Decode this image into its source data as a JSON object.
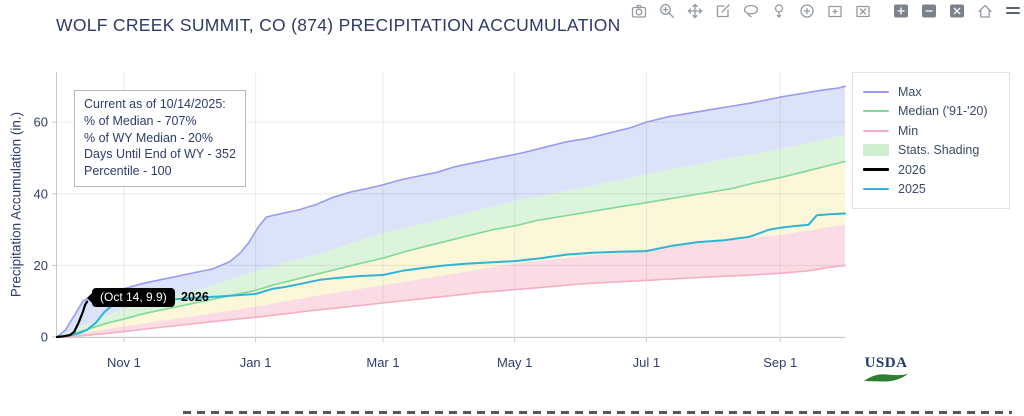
{
  "header": {
    "title": "WOLF CREEK SUMMIT, CO (874) PRECIPITATION ACCUMULATION"
  },
  "annotation": {
    "lines": [
      "Current as of 10/14/2025:",
      "% of Median - 707%",
      "% of WY Median - 20%",
      "Days Until End of WY - 352",
      "Percentile - 100"
    ]
  },
  "tooltip": {
    "text": "(Oct 14, 9.9)",
    "series_label": "2026"
  },
  "footer": {
    "logo_text": "USDA"
  },
  "toolbar": {
    "icons": [
      {
        "name": "camera-icon"
      },
      {
        "name": "zoom-icon"
      },
      {
        "name": "pan-icon"
      },
      {
        "name": "edit-icon"
      },
      {
        "name": "lasso-icon"
      },
      {
        "name": "tap-icon"
      },
      {
        "name": "zoom-in-icon"
      },
      {
        "name": "box-add-icon"
      },
      {
        "name": "box-clear-icon"
      },
      {
        "name": "add-icon",
        "filled": true,
        "gap": true
      },
      {
        "name": "remove-icon",
        "filled": true
      },
      {
        "name": "close-icon",
        "filled": true
      },
      {
        "name": "home-icon"
      },
      {
        "name": "menu-icon"
      }
    ]
  },
  "chart_data": {
    "type": "line",
    "title": "WOLF CREEK SUMMIT, CO (874) PRECIPITATION ACCUMULATION",
    "xlabel": "",
    "ylabel": "Precipitation Accumulation (in.)",
    "x_unit": "days since Oct 1 (water year)",
    "xlim": [
      0,
      365
    ],
    "ylim": [
      0,
      74
    ],
    "grid": true,
    "legend_position": "right",
    "xticks": [
      {
        "day": 31,
        "label": "Nov 1"
      },
      {
        "day": 92,
        "label": "Jan 1"
      },
      {
        "day": 151,
        "label": "Mar 1"
      },
      {
        "day": 212,
        "label": "May 1"
      },
      {
        "day": 273,
        "label": "Jul 1"
      },
      {
        "day": 335,
        "label": "Sep 1"
      }
    ],
    "yticks": [
      {
        "value": 0,
        "label": "0"
      },
      {
        "value": 20,
        "label": "20"
      },
      {
        "value": 40,
        "label": "40"
      },
      {
        "value": 60,
        "label": "60"
      }
    ],
    "series": {
      "min": [
        [
          0,
          0
        ],
        [
          10,
          0.3
        ],
        [
          20,
          0.8
        ],
        [
          31,
          1.5
        ],
        [
          45,
          2.5
        ],
        [
          60,
          3.5
        ],
        [
          75,
          4.5
        ],
        [
          92,
          5.5
        ],
        [
          106,
          6.5
        ],
        [
          120,
          7.5
        ],
        [
          136,
          8.5
        ],
        [
          151,
          9.5
        ],
        [
          166,
          10.5
        ],
        [
          182,
          11.5
        ],
        [
          197,
          12.5
        ],
        [
          212,
          13.2
        ],
        [
          227,
          14
        ],
        [
          242,
          14.8
        ],
        [
          257,
          15.3
        ],
        [
          273,
          15.8
        ],
        [
          288,
          16.3
        ],
        [
          303,
          16.8
        ],
        [
          318,
          17.2
        ],
        [
          335,
          17.8
        ],
        [
          348,
          18.5
        ],
        [
          358,
          19.5
        ],
        [
          365,
          20
        ]
      ],
      "p30": [
        [
          0,
          0
        ],
        [
          31,
          3
        ],
        [
          60,
          5.5
        ],
        [
          92,
          8.5
        ],
        [
          120,
          11.5
        ],
        [
          151,
          14.5
        ],
        [
          182,
          17.5
        ],
        [
          212,
          20.5
        ],
        [
          242,
          22.5
        ],
        [
          273,
          24.5
        ],
        [
          303,
          26.5
        ],
        [
          335,
          28.5
        ],
        [
          365,
          31.5
        ]
      ],
      "median": [
        [
          0,
          0
        ],
        [
          8,
          1
        ],
        [
          16,
          2.5
        ],
        [
          24,
          4
        ],
        [
          31,
          5
        ],
        [
          40,
          6.5
        ],
        [
          48,
          7.5
        ],
        [
          56,
          8.5
        ],
        [
          64,
          9.5
        ],
        [
          72,
          10.5
        ],
        [
          80,
          11.5
        ],
        [
          92,
          13
        ],
        [
          100,
          14.5
        ],
        [
          110,
          16
        ],
        [
          120,
          17.5
        ],
        [
          130,
          19
        ],
        [
          140,
          20.5
        ],
        [
          151,
          22
        ],
        [
          162,
          24
        ],
        [
          172,
          25.5
        ],
        [
          182,
          27
        ],
        [
          192,
          28.5
        ],
        [
          202,
          30
        ],
        [
          212,
          31
        ],
        [
          222,
          32.5
        ],
        [
          232,
          33.5
        ],
        [
          242,
          34.5
        ],
        [
          252,
          35.5
        ],
        [
          262,
          36.5
        ],
        [
          273,
          37.5
        ],
        [
          283,
          38.5
        ],
        [
          293,
          39.5
        ],
        [
          303,
          40.5
        ],
        [
          313,
          41.5
        ],
        [
          323,
          43
        ],
        [
          335,
          44.5
        ],
        [
          345,
          46
        ],
        [
          355,
          47.5
        ],
        [
          365,
          49
        ]
      ],
      "p70": [
        [
          0,
          0
        ],
        [
          31,
          8
        ],
        [
          60,
          12
        ],
        [
          92,
          18.5
        ],
        [
          120,
          23
        ],
        [
          151,
          29
        ],
        [
          182,
          33.5
        ],
        [
          212,
          38
        ],
        [
          242,
          41.5
        ],
        [
          273,
          45.5
        ],
        [
          303,
          49
        ],
        [
          335,
          52.5
        ],
        [
          365,
          56.5
        ]
      ],
      "max": [
        [
          0,
          0
        ],
        [
          4,
          2
        ],
        [
          8,
          6
        ],
        [
          12,
          10
        ],
        [
          16,
          11.5
        ],
        [
          22,
          12.5
        ],
        [
          31,
          13.5
        ],
        [
          40,
          15
        ],
        [
          48,
          16
        ],
        [
          56,
          17
        ],
        [
          64,
          18
        ],
        [
          72,
          19
        ],
        [
          80,
          21
        ],
        [
          85,
          23.5
        ],
        [
          89,
          26.5
        ],
        [
          93,
          30.5
        ],
        [
          97,
          33.5
        ],
        [
          104,
          34.5
        ],
        [
          112,
          35.5
        ],
        [
          120,
          37
        ],
        [
          128,
          39
        ],
        [
          136,
          40.5
        ],
        [
          144,
          41.5
        ],
        [
          151,
          42.5
        ],
        [
          160,
          44
        ],
        [
          168,
          45
        ],
        [
          176,
          46
        ],
        [
          184,
          47.5
        ],
        [
          192,
          48.5
        ],
        [
          200,
          49.5
        ],
        [
          208,
          50.5
        ],
        [
          216,
          51.5
        ],
        [
          226,
          53
        ],
        [
          236,
          54.5
        ],
        [
          246,
          55.5
        ],
        [
          256,
          57
        ],
        [
          266,
          58.5
        ],
        [
          273,
          60
        ],
        [
          283,
          61.5
        ],
        [
          293,
          62.5
        ],
        [
          303,
          63.5
        ],
        [
          313,
          64.5
        ],
        [
          323,
          65.5
        ],
        [
          335,
          67
        ],
        [
          345,
          68
        ],
        [
          355,
          69
        ],
        [
          362,
          69.5
        ],
        [
          365,
          70
        ]
      ],
      "y2025": [
        [
          0,
          0
        ],
        [
          6,
          0.5
        ],
        [
          10,
          1
        ],
        [
          14,
          2
        ],
        [
          18,
          4
        ],
        [
          22,
          7
        ],
        [
          26,
          9
        ],
        [
          31,
          9.5
        ],
        [
          45,
          10
        ],
        [
          60,
          10.8
        ],
        [
          75,
          11.3
        ],
        [
          92,
          12
        ],
        [
          100,
          13.5
        ],
        [
          106,
          14
        ],
        [
          114,
          15
        ],
        [
          122,
          16
        ],
        [
          130,
          16.5
        ],
        [
          140,
          17
        ],
        [
          151,
          17.3
        ],
        [
          160,
          18.5
        ],
        [
          170,
          19.3
        ],
        [
          180,
          20
        ],
        [
          190,
          20.5
        ],
        [
          200,
          20.8
        ],
        [
          212,
          21.2
        ],
        [
          224,
          22
        ],
        [
          236,
          23
        ],
        [
          248,
          23.5
        ],
        [
          260,
          23.8
        ],
        [
          273,
          24
        ],
        [
          285,
          25.5
        ],
        [
          297,
          26.5
        ],
        [
          309,
          27
        ],
        [
          321,
          28
        ],
        [
          330,
          30
        ],
        [
          335,
          30.5
        ],
        [
          342,
          31
        ],
        [
          348,
          31.3
        ],
        [
          352,
          34
        ],
        [
          358,
          34.3
        ],
        [
          365,
          34.5
        ]
      ],
      "y2026": [
        [
          0,
          0
        ],
        [
          3,
          0.2
        ],
        [
          6,
          0.5
        ],
        [
          8,
          1.5
        ],
        [
          10,
          4
        ],
        [
          12,
          7
        ],
        [
          13,
          9
        ],
        [
          14,
          9.9
        ]
      ]
    },
    "bands": [
      {
        "name": "min-p30",
        "lower": "min",
        "upper": "p30",
        "color": "#fbdce4"
      },
      {
        "name": "p30-median",
        "lower": "p30",
        "upper": "median",
        "color": "#fcf7d8"
      },
      {
        "name": "median-p70",
        "lower": "median",
        "upper": "p70",
        "color": "#dcf3dc"
      },
      {
        "name": "p70-max",
        "lower": "p70",
        "upper": "max",
        "color": "#dbe3f8"
      }
    ],
    "lines": [
      {
        "name": "min",
        "series": "min",
        "color": "#f5b0bf",
        "width": 1.6
      },
      {
        "name": "median",
        "series": "median",
        "color": "#7fd99a",
        "width": 1.6
      },
      {
        "name": "max",
        "series": "max",
        "color": "#9a9af0",
        "width": 1.6
      },
      {
        "name": "2025",
        "series": "y2025",
        "color": "#2eb4d6",
        "width": 2
      },
      {
        "name": "2026",
        "series": "y2026",
        "color": "#000000",
        "width": 2.2
      }
    ],
    "legend": [
      {
        "label": "Max",
        "type": "line",
        "color": "#9a9af0",
        "width": 2
      },
      {
        "label": "Median ('91-'20)",
        "type": "line",
        "color": "#7fd99a",
        "width": 2
      },
      {
        "label": "Min",
        "type": "line",
        "color": "#f5b0bf",
        "width": 2
      },
      {
        "label": "Stats. Shading",
        "type": "patch",
        "color": "#cfeecf"
      },
      {
        "label": "2026",
        "type": "line",
        "color": "#000000",
        "width": 3
      },
      {
        "label": "2025",
        "type": "line",
        "color": "#2eb4d6",
        "width": 2
      }
    ]
  }
}
